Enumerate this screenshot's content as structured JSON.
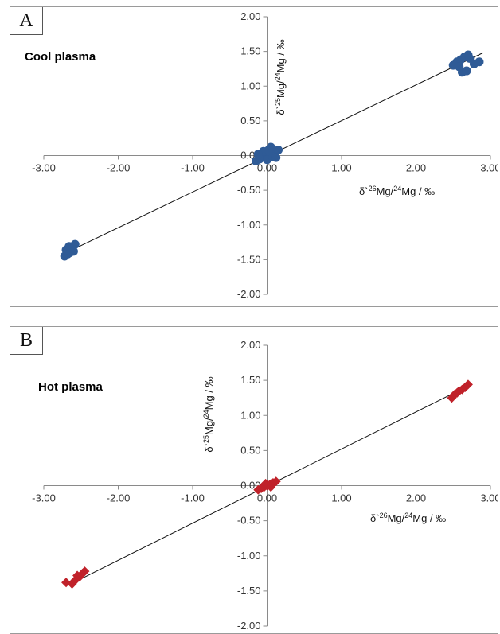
{
  "chart_data": [
    {
      "type": "scatter",
      "panel_letter": "A",
      "plot_label": "Cool plasma",
      "marker": "circle",
      "color": "#2f5b96",
      "xlabel": "δ`26Mg/24Mg / ‰",
      "ylabel": "δ`25Mg/24Mg / ‰",
      "xlim": [
        -3.0,
        3.0
      ],
      "ylim": [
        -2.0,
        2.0
      ],
      "xticks": [
        "-3.00",
        "-2.00",
        "-1.00",
        "0.00",
        "1.00",
        "2.00",
        "3.00"
      ],
      "yticks": [
        "2.00",
        "1.50",
        "1.00",
        "0.50",
        "0.00",
        "-0.50",
        "-1.00",
        "-1.50",
        "-2.00"
      ],
      "trendline": {
        "x": [
          -2.7,
          2.9
        ],
        "y": [
          -1.4,
          1.48
        ]
      },
      "points": [
        {
          "x": -2.72,
          "y": -1.45
        },
        {
          "x": -2.68,
          "y": -1.42
        },
        {
          "x": -2.65,
          "y": -1.4
        },
        {
          "x": -2.62,
          "y": -1.33
        },
        {
          "x": -2.7,
          "y": -1.36
        },
        {
          "x": -2.58,
          "y": -1.28
        },
        {
          "x": -2.66,
          "y": -1.31
        },
        {
          "x": -2.6,
          "y": -1.38
        },
        {
          "x": -0.15,
          "y": -0.08
        },
        {
          "x": -0.1,
          "y": -0.05
        },
        {
          "x": -0.05,
          "y": -0.02
        },
        {
          "x": 0.0,
          "y": 0.0
        },
        {
          "x": 0.05,
          "y": 0.03
        },
        {
          "x": 0.1,
          "y": 0.05
        },
        {
          "x": 0.15,
          "y": 0.08
        },
        {
          "x": 0.05,
          "y": 0.12
        },
        {
          "x": -0.05,
          "y": 0.06
        },
        {
          "x": 0.0,
          "y": -0.06
        },
        {
          "x": 0.08,
          "y": -0.02
        },
        {
          "x": 0.02,
          "y": 0.08
        },
        {
          "x": -0.12,
          "y": 0.02
        },
        {
          "x": 0.12,
          "y": -0.03
        },
        {
          "x": 2.5,
          "y": 1.3
        },
        {
          "x": 2.55,
          "y": 1.35
        },
        {
          "x": 2.6,
          "y": 1.38
        },
        {
          "x": 2.65,
          "y": 1.42
        },
        {
          "x": 2.7,
          "y": 1.45
        },
        {
          "x": 2.62,
          "y": 1.2
        },
        {
          "x": 2.68,
          "y": 1.22
        },
        {
          "x": 2.78,
          "y": 1.32
        },
        {
          "x": 2.85,
          "y": 1.35
        },
        {
          "x": 2.58,
          "y": 1.28
        },
        {
          "x": 2.72,
          "y": 1.4
        }
      ]
    },
    {
      "type": "scatter",
      "panel_letter": "B",
      "plot_label": "Hot plasma",
      "marker": "diamond",
      "color": "#c0222a",
      "xlabel": "δ`26Mg/24Mg / ‰",
      "ylabel": "δ`25Mg/24Mg / ‰",
      "xlim": [
        -3.0,
        3.0
      ],
      "ylim": [
        -2.0,
        2.0
      ],
      "xticks": [
        "-3.00",
        "-2.00",
        "-1.00",
        "0.00",
        "1.00",
        "2.00",
        "3.00"
      ],
      "yticks": [
        "2.00",
        "1.50",
        "1.00",
        "0.50",
        "0.00",
        "-0.50",
        "-1.00",
        "-1.50",
        "-2.00"
      ],
      "trendline": {
        "x": [
          -2.6,
          2.7
        ],
        "y": [
          -1.38,
          1.42
        ]
      },
      "points": [
        {
          "x": -2.7,
          "y": -1.38
        },
        {
          "x": -2.62,
          "y": -1.4
        },
        {
          "x": -2.58,
          "y": -1.35
        },
        {
          "x": -2.52,
          "y": -1.3
        },
        {
          "x": -2.48,
          "y": -1.25
        },
        {
          "x": -2.45,
          "y": -1.22
        },
        {
          "x": -2.55,
          "y": -1.28
        },
        {
          "x": -0.12,
          "y": -0.06
        },
        {
          "x": -0.08,
          "y": -0.04
        },
        {
          "x": -0.04,
          "y": -0.02
        },
        {
          "x": 0.0,
          "y": 0.0
        },
        {
          "x": 0.04,
          "y": 0.02
        },
        {
          "x": 0.08,
          "y": 0.04
        },
        {
          "x": 0.12,
          "y": 0.06
        },
        {
          "x": -0.02,
          "y": 0.03
        },
        {
          "x": 0.05,
          "y": -0.02
        },
        {
          "x": 2.48,
          "y": 1.25
        },
        {
          "x": 2.52,
          "y": 1.3
        },
        {
          "x": 2.58,
          "y": 1.35
        },
        {
          "x": 2.62,
          "y": 1.37
        },
        {
          "x": 2.66,
          "y": 1.4
        },
        {
          "x": 2.7,
          "y": 1.44
        },
        {
          "x": 2.55,
          "y": 1.32
        }
      ]
    }
  ]
}
